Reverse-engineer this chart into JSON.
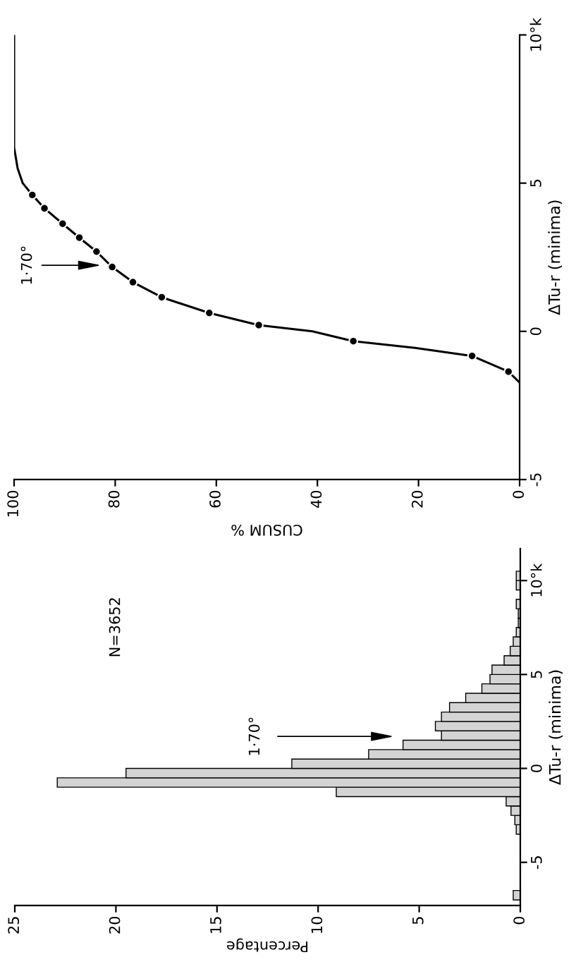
{
  "chart_data": [
    {
      "type": "histogram",
      "orientation": "horizontal",
      "xlabel": "Percentage",
      "ylabel": "ΔTu-r (minima)",
      "color": "#d4d4d4",
      "bins": [
        -7.0,
        -6.5,
        -6.0,
        -5.5,
        -5.0,
        -4.5,
        -4.0,
        -3.5,
        -3.0,
        -2.5,
        -2.0,
        -1.5,
        -1.0,
        -0.5,
        0.0,
        0.5,
        1.0,
        1.5,
        2.0,
        2.5,
        3.0,
        3.5,
        4.0,
        4.5,
        5.0,
        5.5,
        6.0,
        6.5,
        7.0,
        7.5,
        8.0,
        8.5,
        9.0,
        9.5,
        10.0,
        10.5
      ],
      "values": [
        0.35,
        0,
        0,
        0,
        0,
        0,
        0,
        0.2,
        0.27,
        0.46,
        0.7,
        9.1,
        22.9,
        19.5,
        11.3,
        7.5,
        5.8,
        3.9,
        4.2,
        3.9,
        3.5,
        2.7,
        1.9,
        1.5,
        1.4,
        0.8,
        0.5,
        0.35,
        0.2,
        0.1,
        0.1,
        0.2,
        0,
        0.2,
        0.2
      ],
      "xlim": [
        25,
        0
      ],
      "xticks": [
        0,
        5,
        10,
        15,
        20,
        25
      ],
      "ylim": [
        -7.3,
        11.7
      ],
      "yticks": [
        -5,
        0,
        5,
        {
          "value": 10,
          "label": "10°k"
        }
      ],
      "annotations": [
        "1·70°",
        "N=3652"
      ]
    },
    {
      "type": "line",
      "orientation": "horizontal",
      "xlabel": "CUSUM %",
      "ylabel": "ΔTu-r (minima)",
      "series": [
        {
          "type": "line",
          "color": "#000000",
          "marker": "none",
          "x": [
            -1.73,
            -1.36,
            -0.83,
            -0.56,
            -0.33,
            0.0,
            0.21,
            0.62,
            1.15,
            1.66,
            2.17,
            2.69,
            3.16,
            3.63,
            4.15,
            4.6,
            5.0,
            5.5,
            6.2,
            7.0,
            10.0
          ],
          "values": [
            0,
            2.2,
            9.4,
            20.7,
            32.9,
            41,
            51.6,
            61.4,
            70.8,
            76.5,
            80.6,
            83.7,
            87.1,
            90.4,
            94.0,
            96.4,
            98.3,
            99.3,
            100,
            100,
            100
          ]
        },
        {
          "type": "scatter",
          "color": "#000000",
          "marker": "circle",
          "x": [
            -1.36,
            -0.83,
            -0.33,
            0.21,
            0.62,
            1.15,
            1.66,
            2.17,
            2.69,
            3.16,
            3.63,
            4.15,
            4.6
          ],
          "values": [
            2.2,
            9.4,
            32.9,
            51.6,
            61.4,
            70.8,
            76.5,
            80.6,
            83.7,
            87.1,
            90.4,
            94.0,
            96.4
          ]
        }
      ],
      "xlim": [
        100,
        0
      ],
      "xticks": [
        0,
        20,
        40,
        60,
        80,
        100
      ],
      "ylim": [
        -5,
        10
      ],
      "yticks": [
        -5,
        0,
        5,
        {
          "value": 10,
          "label": "10°k"
        }
      ],
      "annotations": [
        "1·70°"
      ]
    }
  ]
}
